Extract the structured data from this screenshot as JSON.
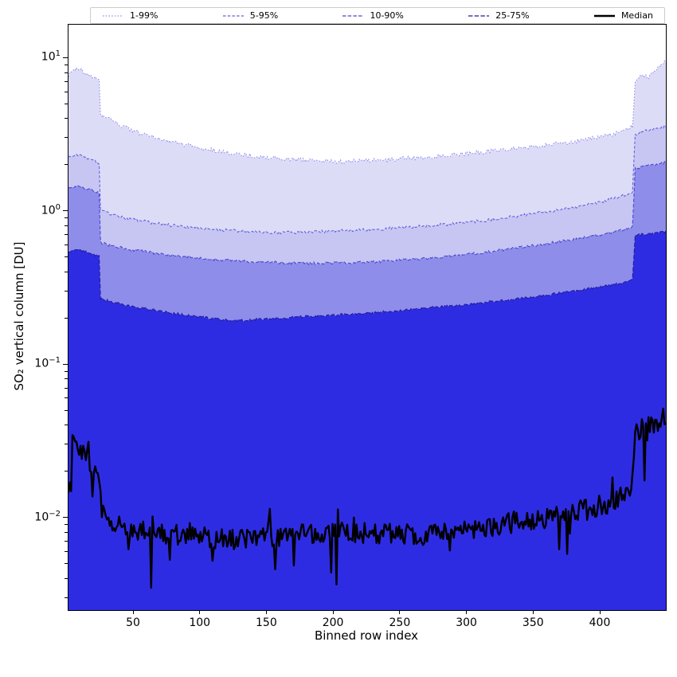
{
  "chart_data": {
    "type": "area",
    "title": "",
    "xlabel": "Binned row index",
    "ylabel": "SO₂ vertical column [DU]",
    "x_range": [
      1,
      449
    ],
    "y_scale": "log",
    "y_range_log10": [
      -2.6,
      1.22
    ],
    "x_ticks": [
      50,
      100,
      150,
      200,
      250,
      300,
      350,
      400
    ],
    "y_ticks": [
      {
        "log10": 1,
        "label": "10^1"
      },
      {
        "log10": 0,
        "label": "10^0"
      },
      {
        "log10": -1,
        "label": "10^−1"
      },
      {
        "log10": -2,
        "label": "10^−2"
      }
    ],
    "legend_position": "top",
    "grid": false,
    "bands": [
      {
        "label": "1-99%",
        "range": "1-99",
        "fill": "#dddcf7",
        "stroke": "#8e8cec",
        "dash": "1.5 2.2",
        "noise": 0.014,
        "points": [
          [
            1,
            7.8
          ],
          [
            5,
            8.4
          ],
          [
            9,
            8.7
          ],
          [
            13,
            8.0
          ],
          [
            17,
            7.7
          ],
          [
            21,
            7.4
          ],
          [
            24,
            7.1
          ],
          [
            25,
            4.3
          ],
          [
            32,
            4.0
          ],
          [
            40,
            3.65
          ],
          [
            50,
            3.35
          ],
          [
            62,
            3.1
          ],
          [
            75,
            2.9
          ],
          [
            90,
            2.72
          ],
          [
            100,
            2.6
          ],
          [
            115,
            2.46
          ],
          [
            130,
            2.36
          ],
          [
            145,
            2.28
          ],
          [
            160,
            2.22
          ],
          [
            175,
            2.17
          ],
          [
            190,
            2.14
          ],
          [
            205,
            2.12
          ],
          [
            220,
            2.14
          ],
          [
            235,
            2.17
          ],
          [
            250,
            2.21
          ],
          [
            265,
            2.26
          ],
          [
            280,
            2.31
          ],
          [
            295,
            2.38
          ],
          [
            310,
            2.44
          ],
          [
            325,
            2.52
          ],
          [
            340,
            2.6
          ],
          [
            355,
            2.69
          ],
          [
            370,
            2.79
          ],
          [
            385,
            2.92
          ],
          [
            400,
            3.06
          ],
          [
            410,
            3.2
          ],
          [
            418,
            3.4
          ],
          [
            424,
            3.62
          ],
          [
            426,
            7.2
          ],
          [
            431,
            7.8
          ],
          [
            436,
            7.5
          ],
          [
            441,
            8.3
          ],
          [
            445,
            8.9
          ],
          [
            449,
            9.7
          ]
        ]
      },
      {
        "label": "5-95%",
        "range": "5-95",
        "fill": "#c7c6f2",
        "stroke": "#6462de",
        "dash": "3.5 2.2",
        "noise": 0.01,
        "points": [
          [
            1,
            2.28
          ],
          [
            8,
            2.33
          ],
          [
            15,
            2.22
          ],
          [
            21,
            2.12
          ],
          [
            24,
            2.06
          ],
          [
            25,
            1.02
          ],
          [
            32,
            0.96
          ],
          [
            42,
            0.91
          ],
          [
            55,
            0.87
          ],
          [
            70,
            0.83
          ],
          [
            85,
            0.8
          ],
          [
            100,
            0.78
          ],
          [
            120,
            0.755
          ],
          [
            140,
            0.74
          ],
          [
            160,
            0.73
          ],
          [
            180,
            0.735
          ],
          [
            200,
            0.745
          ],
          [
            220,
            0.76
          ],
          [
            240,
            0.775
          ],
          [
            260,
            0.795
          ],
          [
            280,
            0.82
          ],
          [
            300,
            0.85
          ],
          [
            320,
            0.89
          ],
          [
            340,
            0.94
          ],
          [
            360,
            1.0
          ],
          [
            380,
            1.07
          ],
          [
            400,
            1.16
          ],
          [
            412,
            1.23
          ],
          [
            420,
            1.3
          ],
          [
            424,
            1.36
          ],
          [
            426,
            3.2
          ],
          [
            433,
            3.35
          ],
          [
            441,
            3.48
          ],
          [
            449,
            3.62
          ]
        ]
      },
      {
        "label": "10-90%",
        "range": "10-90",
        "fill": "#8f8dea",
        "stroke": "#4a48cf",
        "dash": "4.5 2.2",
        "noise": 0.009,
        "points": [
          [
            1,
            1.43
          ],
          [
            9,
            1.46
          ],
          [
            17,
            1.39
          ],
          [
            24,
            1.33
          ],
          [
            25,
            0.63
          ],
          [
            33,
            0.6
          ],
          [
            45,
            0.57
          ],
          [
            60,
            0.545
          ],
          [
            78,
            0.52
          ],
          [
            95,
            0.5
          ],
          [
            112,
            0.487
          ],
          [
            130,
            0.476
          ],
          [
            150,
            0.467
          ],
          [
            170,
            0.462
          ],
          [
            190,
            0.461
          ],
          [
            210,
            0.464
          ],
          [
            230,
            0.471
          ],
          [
            250,
            0.481
          ],
          [
            270,
            0.496
          ],
          [
            290,
            0.515
          ],
          [
            310,
            0.54
          ],
          [
            330,
            0.568
          ],
          [
            350,
            0.6
          ],
          [
            370,
            0.638
          ],
          [
            390,
            0.682
          ],
          [
            405,
            0.72
          ],
          [
            415,
            0.758
          ],
          [
            421,
            0.785
          ],
          [
            424,
            0.805
          ],
          [
            426,
            1.9
          ],
          [
            433,
            1.96
          ],
          [
            441,
            2.02
          ],
          [
            449,
            2.1
          ]
        ]
      },
      {
        "label": "25-75%",
        "range": "25-75",
        "fill": "#2e2ce2",
        "stroke": "#1f1e9a",
        "dash": "5.5 2.2",
        "noise": 0.008,
        "points": [
          [
            1,
            0.55
          ],
          [
            9,
            0.565
          ],
          [
            17,
            0.535
          ],
          [
            24,
            0.512
          ],
          [
            25,
            0.272
          ],
          [
            33,
            0.258
          ],
          [
            46,
            0.244
          ],
          [
            62,
            0.23
          ],
          [
            80,
            0.217
          ],
          [
            98,
            0.206
          ],
          [
            112,
            0.199
          ],
          [
            124,
            0.194
          ],
          [
            138,
            0.197
          ],
          [
            155,
            0.201
          ],
          [
            172,
            0.205
          ],
          [
            190,
            0.209
          ],
          [
            208,
            0.213
          ],
          [
            226,
            0.218
          ],
          [
            244,
            0.224
          ],
          [
            262,
            0.231
          ],
          [
            280,
            0.239
          ],
          [
            298,
            0.247
          ],
          [
            316,
            0.257
          ],
          [
            334,
            0.268
          ],
          [
            352,
            0.281
          ],
          [
            370,
            0.295
          ],
          [
            388,
            0.311
          ],
          [
            402,
            0.325
          ],
          [
            412,
            0.337
          ],
          [
            420,
            0.349
          ],
          [
            424,
            0.358
          ],
          [
            426,
            0.7
          ],
          [
            433,
            0.712
          ],
          [
            441,
            0.726
          ],
          [
            449,
            0.74
          ]
        ]
      }
    ],
    "median": {
      "label": "Median",
      "color": "#000000",
      "width": 2.4,
      "noise": 0.07,
      "points": [
        [
          1,
          0.0285
        ],
        [
          5,
          0.0305
        ],
        [
          9,
          0.026
        ],
        [
          13,
          0.0285
        ],
        [
          17,
          0.0225
        ],
        [
          21,
          0.0205
        ],
        [
          24,
          0.016
        ],
        [
          28,
          0.0115
        ],
        [
          33,
          0.0096
        ],
        [
          40,
          0.0089
        ],
        [
          50,
          0.0084
        ],
        [
          62,
          0.0081
        ],
        [
          76,
          0.0079
        ],
        [
          92,
          0.0077
        ],
        [
          108,
          0.0074
        ],
        [
          124,
          0.0072
        ],
        [
          140,
          0.0075
        ],
        [
          158,
          0.0077
        ],
        [
          176,
          0.0078
        ],
        [
          194,
          0.0079
        ],
        [
          212,
          0.008
        ],
        [
          230,
          0.008
        ],
        [
          248,
          0.0079
        ],
        [
          266,
          0.0078
        ],
        [
          284,
          0.008
        ],
        [
          302,
          0.0085
        ],
        [
          320,
          0.0089
        ],
        [
          338,
          0.0094
        ],
        [
          356,
          0.0099
        ],
        [
          374,
          0.0106
        ],
        [
          390,
          0.0114
        ],
        [
          402,
          0.0122
        ],
        [
          410,
          0.0129
        ],
        [
          416,
          0.0139
        ],
        [
          420,
          0.0152
        ],
        [
          423,
          0.017
        ],
        [
          425,
          0.022
        ],
        [
          426,
          0.034
        ],
        [
          430,
          0.038
        ],
        [
          436,
          0.0405
        ],
        [
          442,
          0.042
        ],
        [
          449,
          0.047
        ]
      ]
    }
  }
}
